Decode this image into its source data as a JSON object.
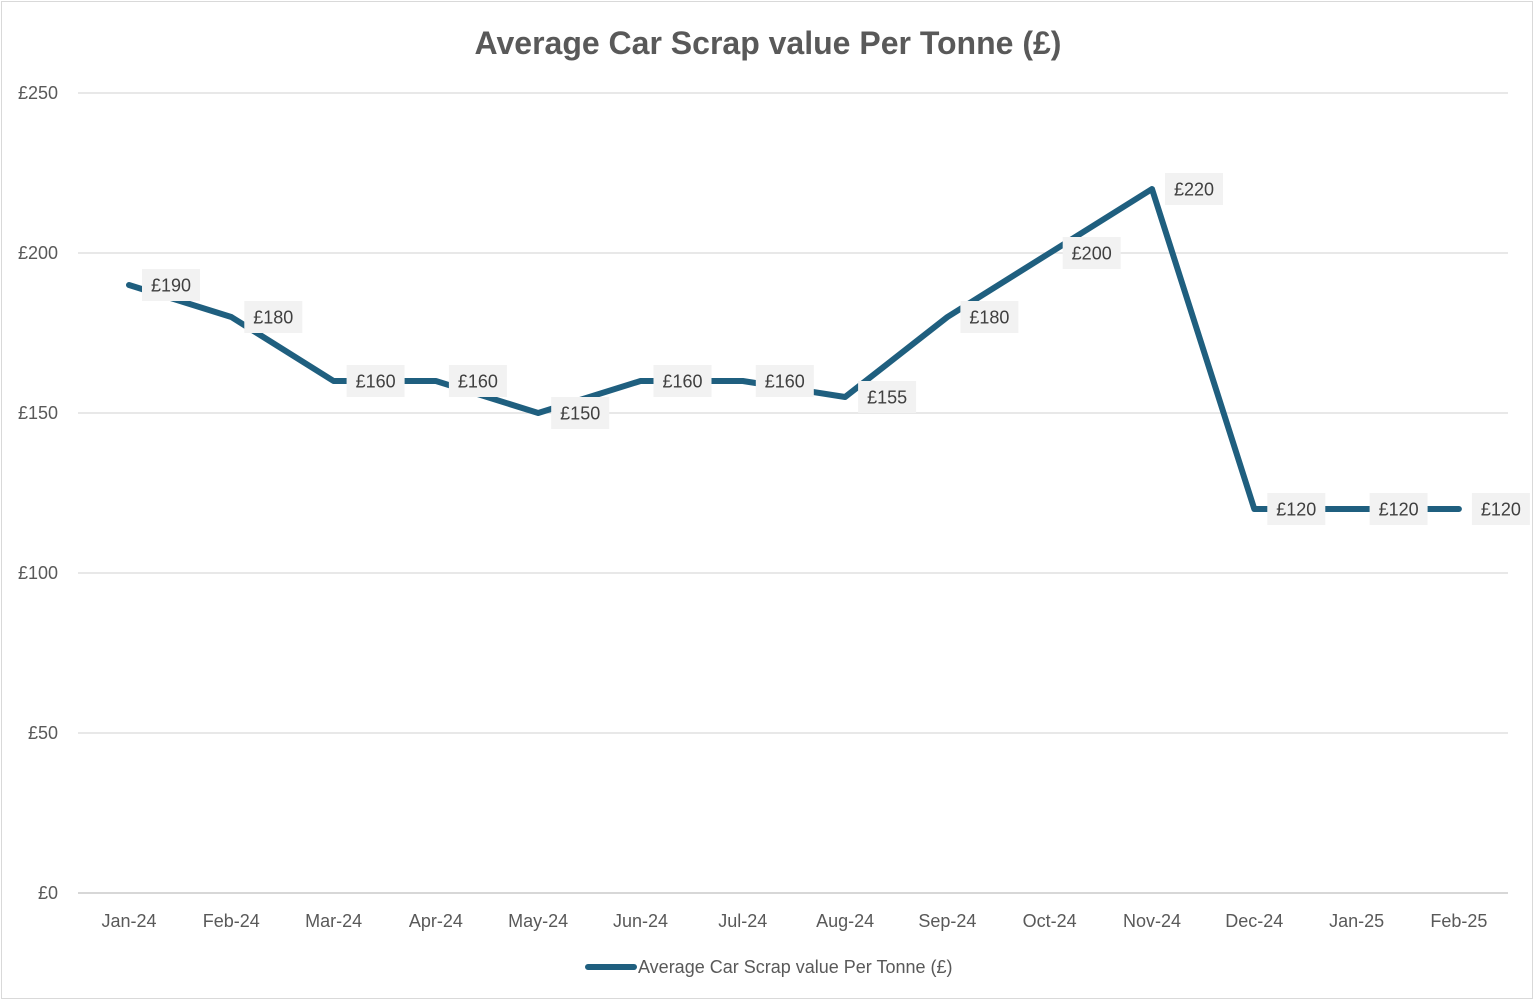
{
  "chart_data": {
    "type": "line",
    "title": "Average Car Scrap value Per Tonne (£)",
    "xlabel": "",
    "ylabel": "",
    "categories": [
      "Jan-24",
      "Feb-24",
      "Mar-24",
      "Apr-24",
      "May-24",
      "Jun-24",
      "Jul-24",
      "Aug-24",
      "Sep-24",
      "Oct-24",
      "Nov-24",
      "Dec-24",
      "Jan-25",
      "Feb-25"
    ],
    "series": [
      {
        "name": "Average Car Scrap value Per Tonne (£)",
        "values": [
          190,
          180,
          160,
          160,
          150,
          160,
          160,
          155,
          180,
          200,
          220,
          120,
          120,
          120
        ],
        "data_labels": [
          "£190",
          "£180",
          "£160",
          "£160",
          "£150",
          "£160",
          "£160",
          "£155",
          "£180",
          "£200",
          "£220",
          "£120",
          "£120",
          "£120"
        ],
        "color": "#1f5f7f"
      }
    ],
    "ylim": [
      0,
      250
    ],
    "yticks": [
      0,
      50,
      100,
      150,
      200,
      250
    ],
    "ytick_labels": [
      "£0",
      "£50",
      "£100",
      "£150",
      "£200",
      "£250"
    ],
    "grid": true,
    "legend_position": "bottom"
  }
}
